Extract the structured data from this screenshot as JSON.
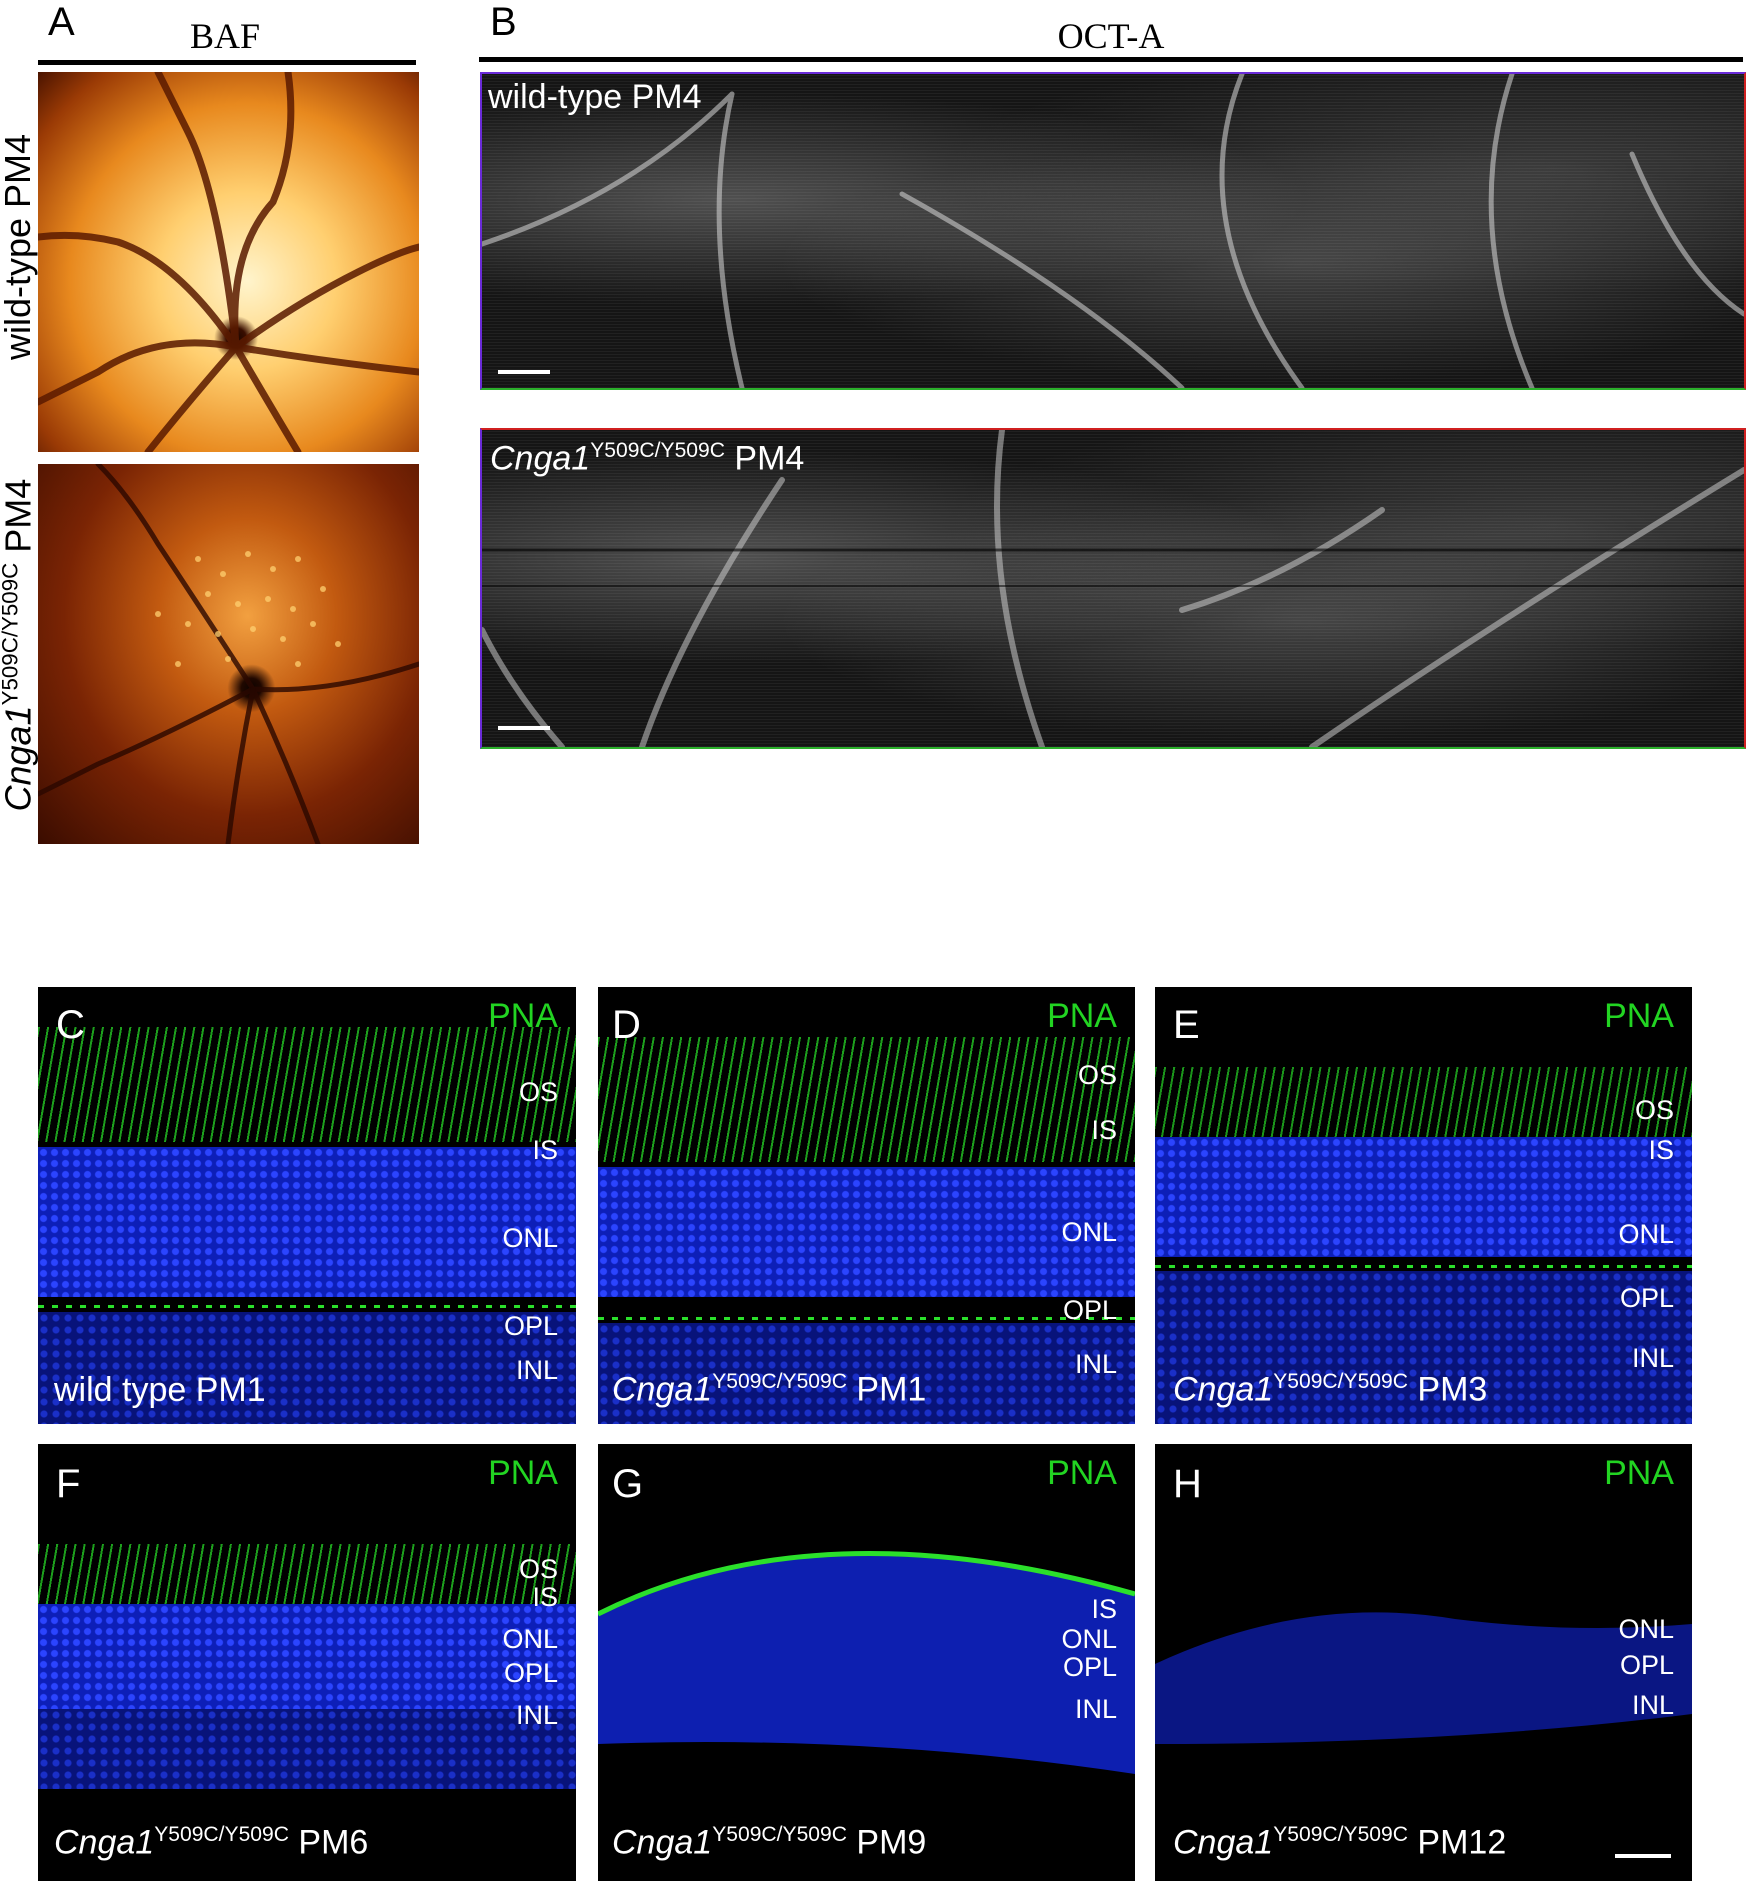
{
  "panel_a": {
    "letter": "A",
    "title": "BAF",
    "row1_label": "wild-type PM4",
    "row2_label_gene": "Cnga1",
    "row2_label_sup": "Y509C/Y509C",
    "row2_label_suffix": " PM4"
  },
  "panel_b": {
    "letter": "B",
    "title": "OCT-A",
    "top_caption": "wild-type PM4",
    "bottom_caption_gene": "Cnga1",
    "bottom_caption_sup": "Y509C/Y509C",
    "bottom_caption_suffix": " PM4"
  },
  "micrographs": [
    {
      "letter": "C",
      "stain": "PNA",
      "layers": [
        "OS",
        "IS",
        "ONL",
        "OPL",
        "INL"
      ],
      "caption_plain": "wild type PM1",
      "caption_gene": "",
      "caption_sup": "",
      "caption_suffix": ""
    },
    {
      "letter": "D",
      "stain": "PNA",
      "layers": [
        "OS",
        "IS",
        "ONL",
        "OPL",
        "INL"
      ],
      "caption_plain": "",
      "caption_gene": "Cnga1",
      "caption_sup": "Y509C/Y509C",
      "caption_suffix": " PM1"
    },
    {
      "letter": "E",
      "stain": "PNA",
      "layers": [
        "OS",
        "IS",
        "ONL",
        "OPL",
        "INL"
      ],
      "caption_plain": "",
      "caption_gene": "Cnga1",
      "caption_sup": "Y509C/Y509C",
      "caption_suffix": " PM3"
    },
    {
      "letter": "F",
      "stain": "PNA",
      "layers": [
        "OS",
        "IS",
        "ONL",
        "OPL",
        "INL"
      ],
      "caption_plain": "",
      "caption_gene": "Cnga1",
      "caption_sup": "Y509C/Y509C",
      "caption_suffix": " PM6"
    },
    {
      "letter": "G",
      "stain": "PNA",
      "layers": [
        "IS",
        "ONL",
        "OPL",
        "INL"
      ],
      "caption_plain": "",
      "caption_gene": "Cnga1",
      "caption_sup": "Y509C/Y509C",
      "caption_suffix": " PM9"
    },
    {
      "letter": "H",
      "stain": "PNA",
      "layers": [
        "ONL",
        "OPL",
        "INL"
      ],
      "caption_plain": "",
      "caption_gene": "Cnga1",
      "caption_sup": "Y509C/Y509C",
      "caption_suffix": " PM12"
    }
  ],
  "colors": {
    "stain_green": "#22d422",
    "nuclei_blue": "#1428c8",
    "oct_border_top": "#7a2be0",
    "oct_border_bottom": "#d02020"
  }
}
